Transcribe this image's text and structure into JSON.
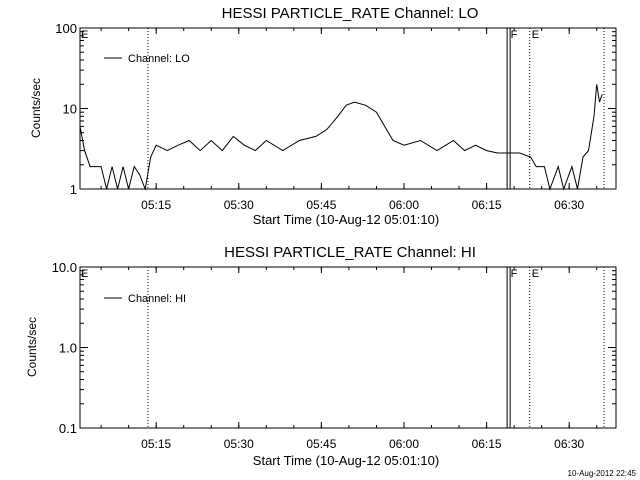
{
  "timestamp": "10-Aug-2012 22:45",
  "chart_data": [
    {
      "type": "line",
      "title": "HESSI PARTICLE_RATE Channel: LO",
      "xlabel": "Start Time (10-Aug-12 05:01:10)",
      "ylabel": "Counts/sec",
      "yscale": "log",
      "ylim": [
        1,
        100
      ],
      "yticks": [
        1,
        10,
        100
      ],
      "ytick_labels": [
        "1",
        "10",
        "100"
      ],
      "xlim": [
        "05:01:10",
        "06:38:30"
      ],
      "xtick_labels": [
        "05:15",
        "05:30",
        "05:45",
        "06:00",
        "06:15",
        "06:30"
      ],
      "legend": {
        "placement": "top-left",
        "entries": [
          "Channel: LO"
        ]
      },
      "markers": [
        {
          "label": "E",
          "time": "05:01:10",
          "style": "none"
        },
        {
          "label": "",
          "time": "05:13:30",
          "style": "dotted"
        },
        {
          "label": "F",
          "time": "06:19:00",
          "style": "solid"
        },
        {
          "label": "E",
          "time": "06:22:50",
          "style": "dotted"
        },
        {
          "label": "",
          "time": "06:36:20",
          "style": "dotted"
        }
      ],
      "series": [
        {
          "name": "Channel: LO",
          "points": [
            [
              "05:01:10",
              6
            ],
            [
              "05:02:00",
              3
            ],
            [
              "05:03:00",
              1.9
            ],
            [
              "05:05:00",
              1.9
            ],
            [
              "05:06:00",
              1
            ],
            [
              "05:07:00",
              1.9
            ],
            [
              "05:08:00",
              1
            ],
            [
              "05:09:00",
              1.9
            ],
            [
              "05:10:00",
              1
            ],
            [
              "05:11:00",
              1.9
            ],
            [
              "05:12:00",
              1.5
            ],
            [
              "05:13:00",
              1
            ],
            [
              "05:14:00",
              2.5
            ],
            [
              "05:15:00",
              3.5
            ],
            [
              "05:17:00",
              3
            ],
            [
              "05:19:00",
              3.5
            ],
            [
              "05:21:00",
              4
            ],
            [
              "05:23:00",
              3
            ],
            [
              "05:25:00",
              4
            ],
            [
              "05:27:00",
              3
            ],
            [
              "05:29:00",
              4.5
            ],
            [
              "05:31:00",
              3.5
            ],
            [
              "05:33:00",
              3
            ],
            [
              "05:35:00",
              4
            ],
            [
              "05:38:00",
              3
            ],
            [
              "05:41:00",
              4
            ],
            [
              "05:44:00",
              4.5
            ],
            [
              "05:46:00",
              5.5
            ],
            [
              "05:48:00",
              8
            ],
            [
              "05:49:30",
              11
            ],
            [
              "05:51:00",
              12
            ],
            [
              "05:53:00",
              11
            ],
            [
              "05:55:00",
              9
            ],
            [
              "05:56:30",
              6
            ],
            [
              "05:58:00",
              4
            ],
            [
              "06:00:00",
              3.5
            ],
            [
              "06:03:00",
              4
            ],
            [
              "06:06:00",
              3
            ],
            [
              "06:09:00",
              4
            ],
            [
              "06:11:00",
              3
            ],
            [
              "06:13:00",
              3.5
            ],
            [
              "06:15:00",
              3
            ],
            [
              "06:17:00",
              2.8
            ],
            [
              "06:19:00",
              2.8
            ],
            [
              "06:21:00",
              2.8
            ],
            [
              "06:23:00",
              2.5
            ],
            [
              "06:24:00",
              1.9
            ],
            [
              "06:25:30",
              1.9
            ],
            [
              "06:26:30",
              1
            ],
            [
              "06:28:00",
              1.9
            ],
            [
              "06:29:00",
              1
            ],
            [
              "06:30:30",
              1.9
            ],
            [
              "06:31:30",
              1
            ],
            [
              "06:32:30",
              2.5
            ],
            [
              "06:33:30",
              3
            ],
            [
              "06:34:30",
              8
            ],
            [
              "06:35:00",
              20
            ],
            [
              "06:35:30",
              12
            ],
            [
              "06:36:00",
              15
            ]
          ]
        }
      ]
    },
    {
      "type": "line",
      "title": "HESSI PARTICLE_RATE Channel: HI",
      "xlabel": "Start Time (10-Aug-12 05:01:10)",
      "ylabel": "Counts/sec",
      "yscale": "log",
      "ylim": [
        0.1,
        10
      ],
      "yticks": [
        0.1,
        1,
        10
      ],
      "ytick_labels": [
        "0.1",
        "1.0",
        "10.0"
      ],
      "xlim": [
        "05:01:10",
        "06:38:30"
      ],
      "xtick_labels": [
        "05:15",
        "05:30",
        "05:45",
        "06:00",
        "06:15",
        "06:30"
      ],
      "legend": {
        "placement": "top-left",
        "entries": [
          "Channel: HI"
        ]
      },
      "markers": [
        {
          "label": "E",
          "time": "05:01:10",
          "style": "none"
        },
        {
          "label": "",
          "time": "05:13:30",
          "style": "dotted"
        },
        {
          "label": "F",
          "time": "06:19:00",
          "style": "solid"
        },
        {
          "label": "E",
          "time": "06:22:50",
          "style": "dotted"
        },
        {
          "label": "",
          "time": "06:36:20",
          "style": "dotted"
        }
      ],
      "series": [
        {
          "name": "Channel: HI",
          "points": []
        }
      ]
    }
  ]
}
